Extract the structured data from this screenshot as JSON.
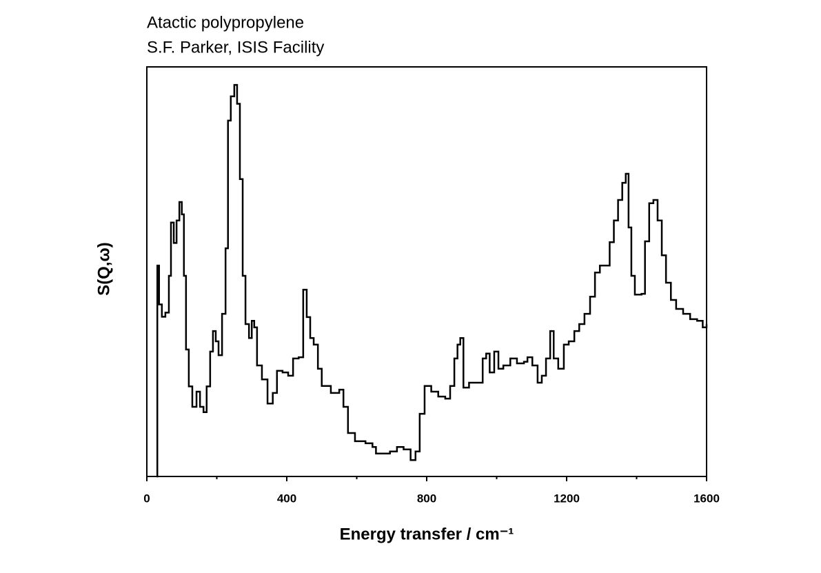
{
  "chart_data": {
    "type": "line",
    "step": true,
    "title": "Atactic polypropylene",
    "subtitle": "S.F. Parker, ISIS Facility",
    "x_label": "Energy transfer / cm⁻¹",
    "y_label": "S(Q,ω)",
    "xlim": [
      0,
      1600
    ],
    "xticks": [
      0,
      400,
      800,
      1200,
      1600
    ],
    "xminor": [
      200,
      600,
      1000,
      1400
    ],
    "ylim": [
      0,
      100
    ],
    "color": "#000000",
    "x": [
      28,
      30,
      35,
      43,
      53,
      63,
      69,
      77,
      85,
      93,
      100,
      106,
      112,
      120,
      130,
      142,
      152,
      162,
      171,
      181,
      189,
      197,
      205,
      215,
      225,
      232,
      240,
      250,
      258,
      266,
      274,
      282,
      292,
      300,
      307,
      315,
      329,
      345,
      360,
      372,
      388,
      404,
      418,
      434,
      447,
      457,
      467,
      477,
      489,
      500,
      526,
      550,
      562,
      575,
      595,
      625,
      645,
      655,
      675,
      695,
      715,
      734,
      754,
      768,
      780,
      794,
      813,
      833,
      853,
      867,
      879,
      888,
      896,
      905,
      921,
      940,
      960,
      970,
      980,
      993,
      1005,
      1019,
      1039,
      1058,
      1078,
      1088,
      1102,
      1117,
      1129,
      1141,
      1153,
      1163,
      1176,
      1192,
      1206,
      1222,
      1236,
      1251,
      1267,
      1281,
      1295,
      1309,
      1323,
      1335,
      1347,
      1359,
      1369,
      1377,
      1385,
      1395,
      1414,
      1424,
      1436,
      1448,
      1460,
      1472,
      1484,
      1498,
      1513,
      1533,
      1553,
      1573,
      1589,
      1600
    ],
    "values": [
      0,
      51.5,
      42,
      39,
      40,
      49,
      62,
      57,
      62.5,
      67,
      64,
      49,
      31,
      22,
      17,
      20.7,
      17,
      15.7,
      22,
      30.5,
      35.5,
      33,
      29.6,
      39.7,
      55.7,
      86.9,
      92.8,
      95.6,
      91,
      72.6,
      49,
      37.2,
      33.8,
      38,
      36.4,
      27.1,
      23.7,
      17.8,
      20.4,
      25.8,
      25.4,
      24.6,
      28.8,
      29.1,
      45.6,
      38.9,
      33.8,
      32.2,
      26.3,
      22.1,
      20.4,
      21.2,
      17,
      10.6,
      8.6,
      8.1,
      7.2,
      5.6,
      5.6,
      6.1,
      7.2,
      6.6,
      4,
      6.1,
      15.3,
      22.1,
      20.7,
      19.5,
      19,
      22.1,
      28.8,
      32.2,
      33.8,
      21.7,
      22.9,
      22.9,
      28.8,
      30,
      25.4,
      30.5,
      26.3,
      27.1,
      28.8,
      27.6,
      28,
      29.1,
      27.1,
      22.9,
      24.6,
      28.8,
      35.5,
      28.8,
      26.3,
      32.2,
      33,
      35.5,
      37.2,
      39.7,
      43.9,
      49.8,
      51.5,
      51.5,
      57.2,
      62.5,
      67.5,
      71.7,
      73.9,
      60.8,
      49,
      44.4,
      44.6,
      57.4,
      66.7,
      67.5,
      62.5,
      54,
      47.3,
      43.1,
      40.9,
      39.7,
      38.4,
      38,
      36.4,
      37.2
    ]
  }
}
